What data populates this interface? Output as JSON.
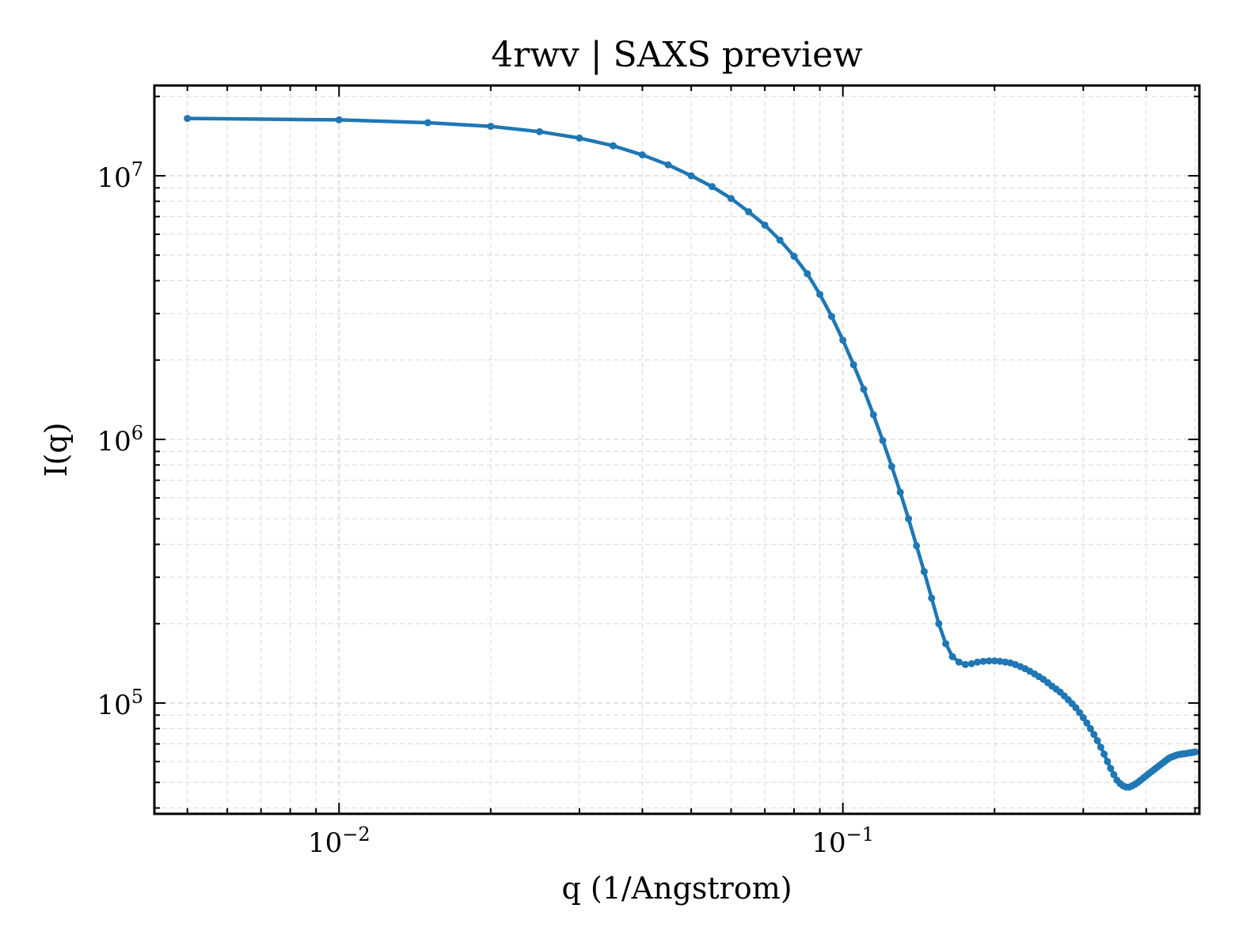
{
  "chart_data": {
    "type": "line",
    "title": "4rwv | SAXS preview",
    "xlabel": "q (1/Angstrom)",
    "ylabel": "I(q)",
    "xscale": "log",
    "yscale": "log",
    "xlim": [
      0.0043,
      0.51
    ],
    "ylim": [
      38000,
      22000000
    ],
    "grid": true,
    "x_ticks": [
      {
        "value": 0.01,
        "base": "10",
        "exp": "−2"
      },
      {
        "value": 0.1,
        "base": "10",
        "exp": "−1"
      }
    ],
    "y_ticks": [
      {
        "value": 100000,
        "base": "10",
        "exp": "5"
      },
      {
        "value": 1000000,
        "base": "10",
        "exp": "6"
      },
      {
        "value": 10000000,
        "base": "10",
        "exp": "7"
      }
    ],
    "color": "#1f77b4",
    "series": [
      {
        "x": [
          0.005,
          0.01,
          0.015,
          0.02,
          0.025,
          0.03,
          0.035,
          0.04,
          0.045,
          0.05,
          0.055,
          0.06,
          0.065,
          0.07,
          0.075,
          0.08,
          0.085,
          0.09,
          0.095,
          0.1,
          0.105,
          0.11,
          0.115,
          0.12,
          0.125,
          0.13,
          0.135,
          0.14,
          0.145,
          0.15,
          0.155,
          0.16,
          0.165,
          0.17,
          0.175,
          0.18,
          0.185,
          0.19,
          0.195,
          0.2,
          0.205,
          0.21,
          0.215,
          0.22,
          0.225,
          0.23,
          0.235,
          0.24,
          0.245,
          0.25,
          0.255,
          0.26,
          0.265,
          0.27,
          0.275,
          0.28,
          0.285,
          0.29,
          0.295,
          0.3,
          0.305,
          0.31,
          0.315,
          0.32,
          0.325,
          0.33,
          0.335,
          0.34,
          0.345,
          0.35,
          0.355,
          0.36,
          0.365,
          0.37,
          0.375,
          0.38,
          0.385,
          0.39,
          0.395,
          0.4,
          0.405,
          0.41,
          0.415,
          0.42,
          0.425,
          0.43,
          0.435,
          0.44,
          0.445,
          0.45,
          0.455,
          0.46,
          0.465,
          0.47,
          0.475,
          0.48,
          0.485,
          0.49,
          0.495,
          0.5
        ],
        "y": [
          16500000,
          16300000,
          15900000,
          15400000,
          14700000,
          13900000,
          13000000,
          12000000,
          11000000,
          10000000,
          9100000,
          8200000,
          7300000,
          6500000,
          5700000,
          4950000,
          4250000,
          3550000,
          2930000,
          2380000,
          1920000,
          1550000,
          1240000,
          990000,
          790000,
          630000,
          500000,
          395000,
          315000,
          250000,
          200000,
          168000,
          150000,
          143000,
          140000,
          141000,
          143000,
          144000,
          144500,
          144500,
          144000,
          143000,
          142000,
          140000,
          137500,
          135000,
          132000,
          129000,
          126000,
          123000,
          119500,
          116000,
          113000,
          110000,
          106500,
          103000,
          99500,
          96000,
          92000,
          88000,
          84000,
          80000,
          76000,
          72000,
          68000,
          64000,
          60000,
          56500,
          53500,
          51000,
          49500,
          48500,
          48000,
          48000,
          48500,
          49200,
          50000,
          51000,
          52000,
          53000,
          54000,
          55000,
          56000,
          57000,
          58000,
          59000,
          60000,
          61000,
          62000,
          62500,
          63000,
          63500,
          63800,
          64000,
          64200,
          64400,
          64600,
          64800,
          65000,
          65200
        ]
      }
    ]
  }
}
